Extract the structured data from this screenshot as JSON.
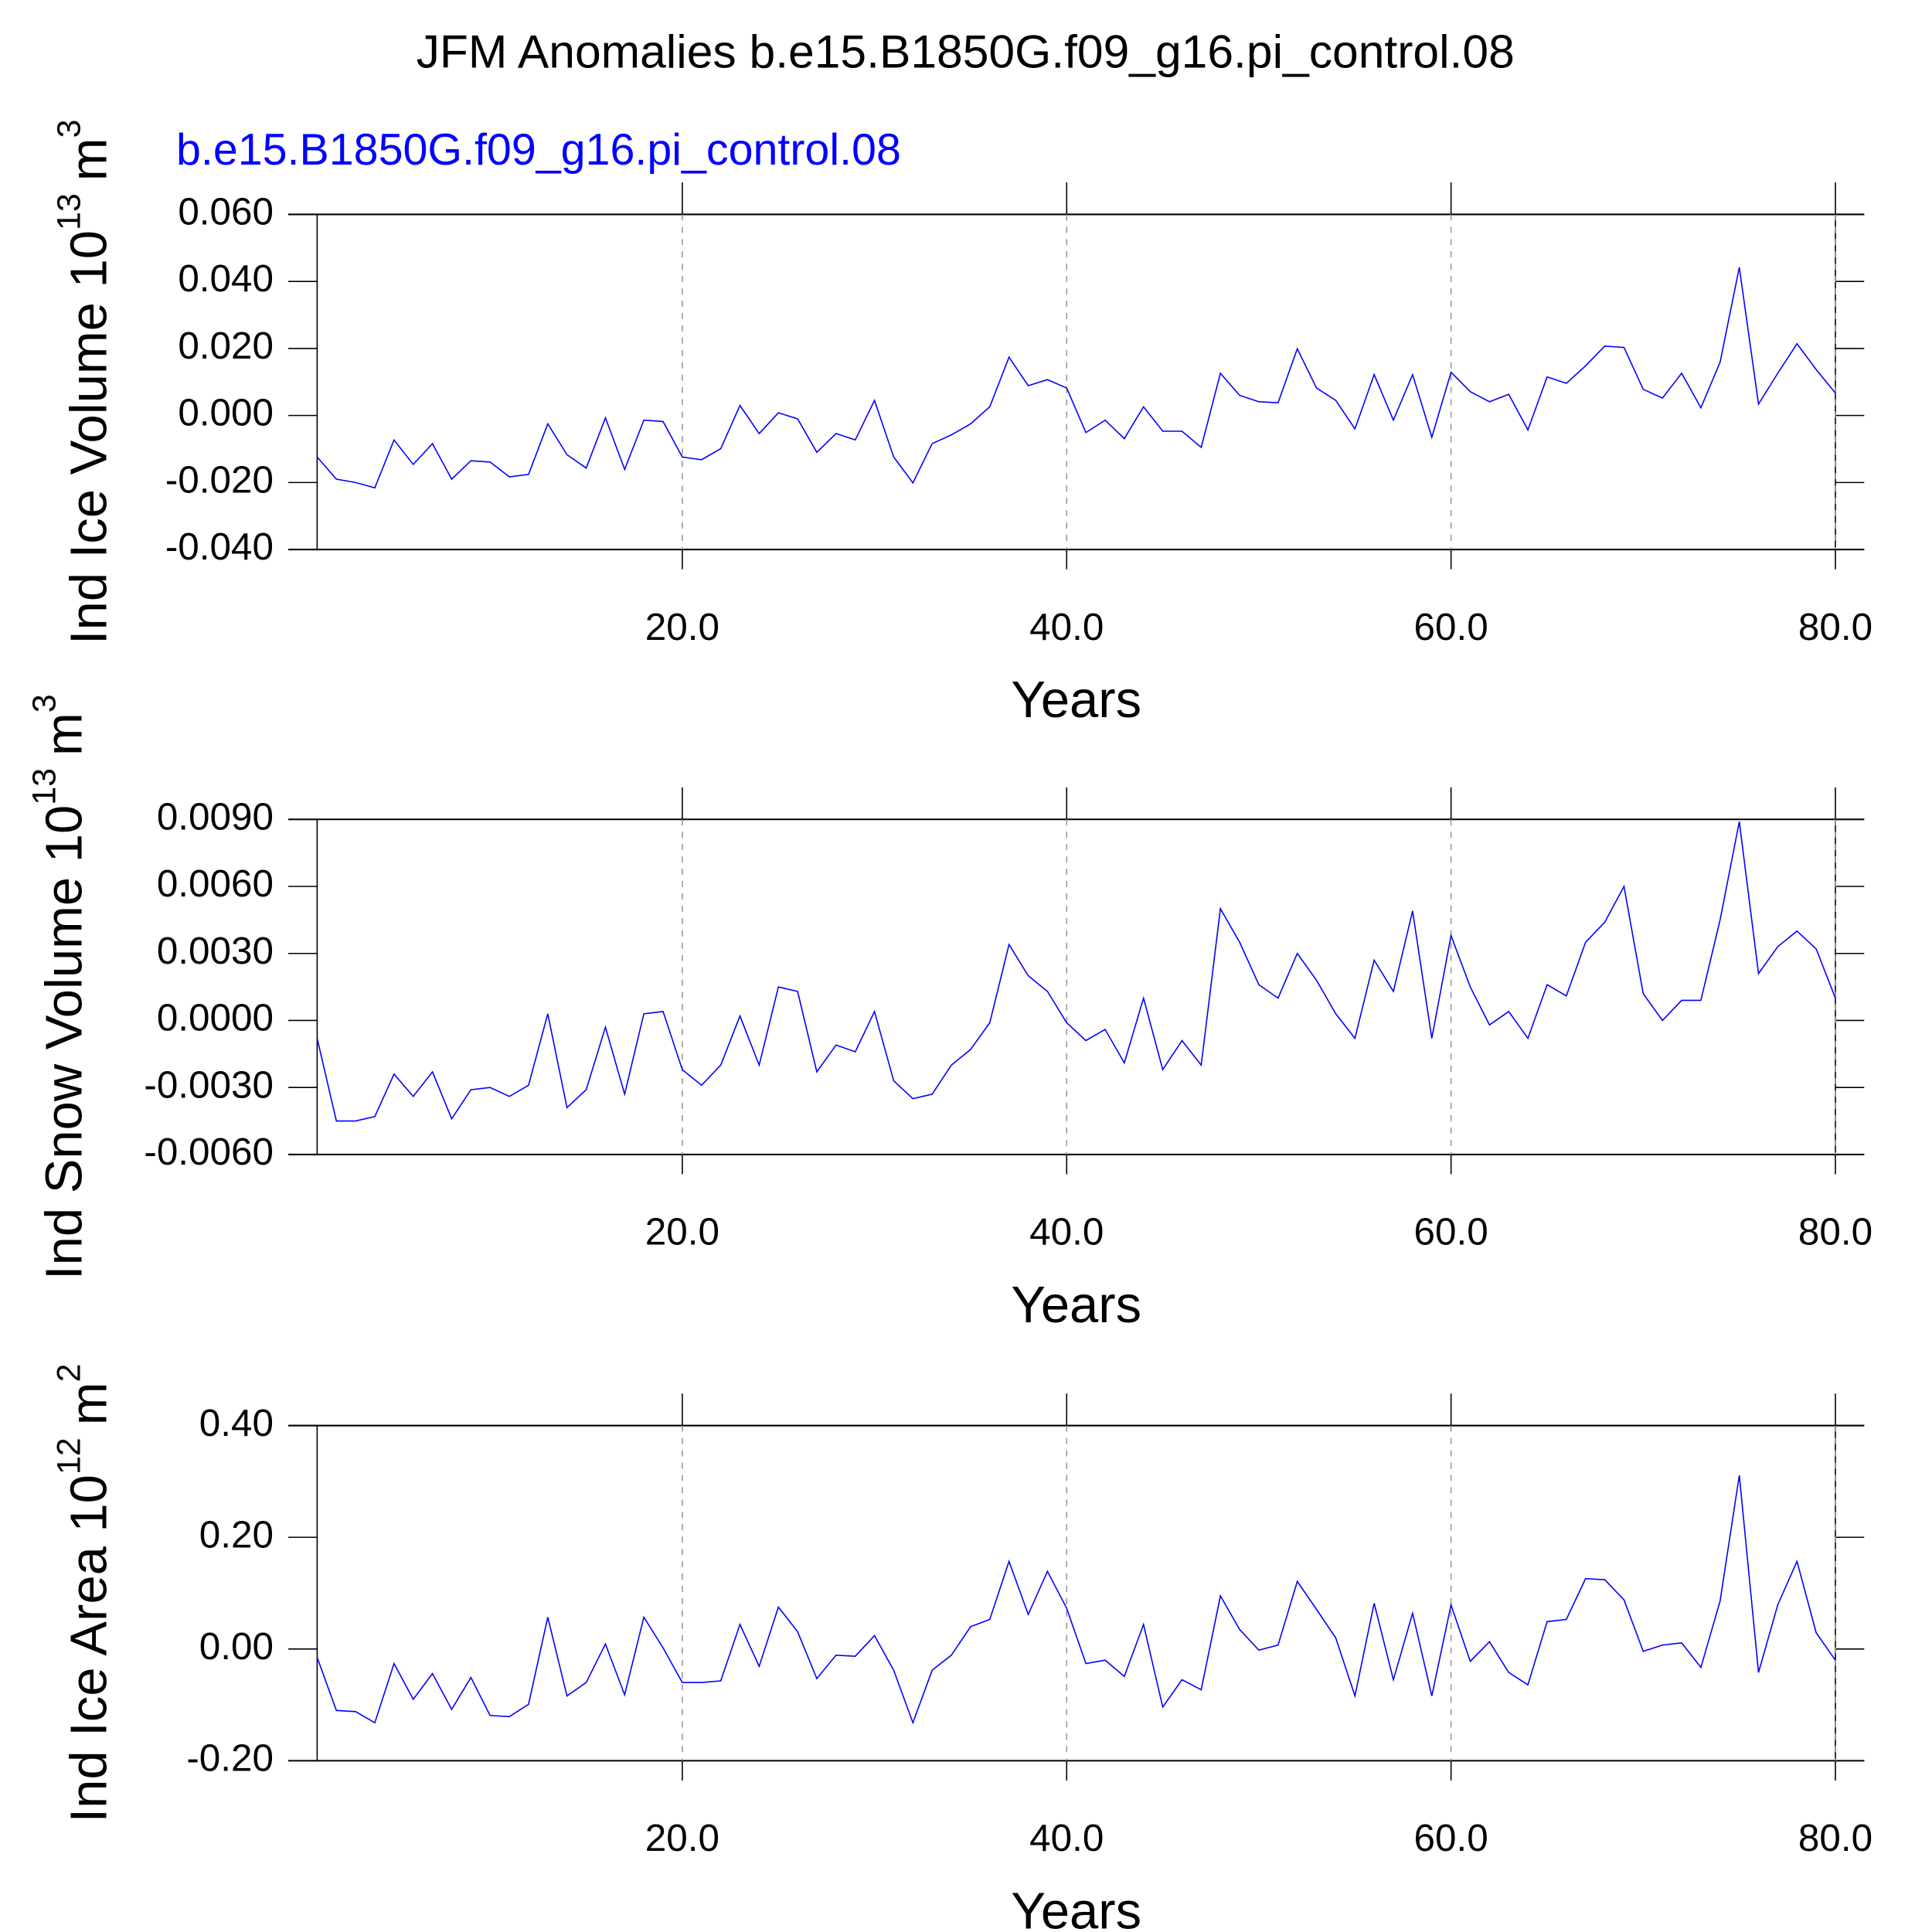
{
  "chart_data": [
    {
      "type": "line",
      "title": "JFM Anomalies b.e15.B1850G.f09_g16.pi_control.08",
      "subtitle": "b.e15.B1850G.f09_g16.pi_control.08",
      "subtitle_color": "#0000ff",
      "ylabel": "Ind Ice Volume 10",
      "ylabel_exponent": "13",
      "ylabel_unit": "m",
      "ylabel_unit_exponent": "3",
      "xlabel": "Years",
      "color": "#0000ff",
      "xlim": [
        -0.5,
        81.5
      ],
      "xticks": [
        {
          "value": 20,
          "label": "20.0"
        },
        {
          "value": 40,
          "label": "40.0"
        },
        {
          "value": 60,
          "label": "60.0"
        },
        {
          "value": 80,
          "label": "80.0"
        }
      ],
      "ylim": [
        -0.04,
        0.06
      ],
      "yticks": [
        {
          "value": 0.06,
          "label": "0.060"
        },
        {
          "value": 0.04,
          "label": "0.040"
        },
        {
          "value": 0.02,
          "label": "0.020"
        },
        {
          "value": 0,
          "label": "0.000"
        },
        {
          "value": -0.02,
          "label": "-0.020"
        },
        {
          "value": -0.04,
          "label": "-0.040"
        }
      ],
      "x": [
        1,
        2,
        3,
        4,
        5,
        6,
        7,
        8,
        9,
        10,
        11,
        12,
        13,
        14,
        15,
        16,
        17,
        18,
        19,
        20,
        21,
        22,
        23,
        24,
        25,
        26,
        27,
        28,
        29,
        30,
        31,
        32,
        33,
        34,
        35,
        36,
        37,
        38,
        39,
        40,
        41,
        42,
        43,
        44,
        45,
        46,
        47,
        48,
        49,
        50,
        51,
        52,
        53,
        54,
        55,
        56,
        57,
        58,
        59,
        60,
        61,
        62,
        63,
        64,
        65,
        66,
        67,
        68,
        69,
        70,
        71,
        72,
        73,
        74,
        75,
        76,
        77,
        78,
        79,
        80
      ],
      "values": [
        -0.0124,
        -0.019,
        -0.02,
        -0.0216,
        -0.0073,
        -0.0146,
        -0.0084,
        -0.019,
        -0.0135,
        -0.0139,
        -0.0183,
        -0.0176,
        -0.0025,
        -0.0117,
        -0.0157,
        -0.0007,
        -0.0161,
        -0.0014,
        -0.0018,
        -0.0124,
        -0.0132,
        -0.0099,
        0.003,
        -0.0054,
        0.0008,
        -0.001,
        -0.011,
        -0.0054,
        -0.0073,
        0.0045,
        -0.0124,
        -0.0201,
        -0.0084,
        -0.0058,
        -0.0025,
        0.0026,
        0.0174,
        0.0089,
        0.0107,
        0.0082,
        -0.0051,
        -0.0014,
        -0.0069,
        0.0026,
        -0.0047,
        -0.0047,
        -0.0095,
        0.0126,
        0.006,
        0.0041,
        0.0038,
        0.0199,
        0.0082,
        0.0045,
        -0.004,
        0.0122,
        -0.0014,
        0.0122,
        -0.0065,
        0.0129,
        0.0071,
        0.0041,
        0.0063,
        -0.0043,
        0.0115,
        0.0096,
        0.0148,
        0.0207,
        0.0203,
        0.0078,
        0.0052,
        0.0126,
        0.0023,
        0.0159,
        0.0442,
        0.0034,
        0.0126,
        0.0214,
        0.0137,
        0.0067
      ]
    },
    {
      "type": "line",
      "ylabel": "Ind Snow Volume 10",
      "ylabel_exponent": "13",
      "ylabel_unit": "m",
      "ylabel_unit_exponent": "3",
      "xlabel": "Years",
      "color": "#0000ff",
      "xlim": [
        -0.5,
        81.5
      ],
      "xticks": [
        {
          "value": 20,
          "label": "20.0"
        },
        {
          "value": 40,
          "label": "40.0"
        },
        {
          "value": 60,
          "label": "60.0"
        },
        {
          "value": 80,
          "label": "80.0"
        }
      ],
      "ylim": [
        -0.006,
        0.009
      ],
      "yticks": [
        {
          "value": 0.009,
          "label": "0.0090"
        },
        {
          "value": 0.006,
          "label": "0.0060"
        },
        {
          "value": 0.003,
          "label": "0.0030"
        },
        {
          "value": 0,
          "label": "0.0000"
        },
        {
          "value": -0.003,
          "label": "-0.0030"
        },
        {
          "value": -0.006,
          "label": "-0.0060"
        }
      ],
      "x": [
        1,
        2,
        3,
        4,
        5,
        6,
        7,
        8,
        9,
        10,
        11,
        12,
        13,
        14,
        15,
        16,
        17,
        18,
        19,
        20,
        21,
        22,
        23,
        24,
        25,
        26,
        27,
        28,
        29,
        30,
        31,
        32,
        33,
        34,
        35,
        36,
        37,
        38,
        39,
        40,
        41,
        42,
        43,
        44,
        45,
        46,
        47,
        48,
        49,
        50,
        51,
        52,
        53,
        54,
        55,
        56,
        57,
        58,
        59,
        60,
        61,
        62,
        63,
        64,
        65,
        66,
        67,
        68,
        69,
        70,
        71,
        72,
        73,
        74,
        75,
        76,
        77,
        78,
        79,
        80
      ],
      "values": [
        -0.0008,
        -0.0045,
        -0.0045,
        -0.0043,
        -0.0024,
        -0.0034,
        -0.0023,
        -0.0044,
        -0.0031,
        -0.003,
        -0.0034,
        -0.0029,
        0.0003,
        -0.0039,
        -0.0031,
        -0.0003,
        -0.0033,
        0.0003,
        0.0004,
        -0.0022,
        -0.0029,
        -0.002,
        0.0002,
        -0.002,
        0.0015,
        0.0013,
        -0.0023,
        -0.0011,
        -0.0014,
        0.0004,
        -0.0027,
        -0.0035,
        -0.0033,
        -0.002,
        -0.0013,
        -0.0001,
        0.0034,
        0.002,
        0.0013,
        -0.0001,
        -0.0009,
        -0.0004,
        -0.0019,
        0.001,
        -0.0022,
        -0.0009,
        -0.002,
        0.005,
        0.0035,
        0.0016,
        0.001,
        0.003,
        0.0018,
        0.0003,
        -0.0008,
        0.0027,
        0.0013,
        0.0049,
        -0.0008,
        0.0038,
        0.0015,
        -0.0002,
        0.0004,
        -0.0008,
        0.0016,
        0.0011,
        0.0035,
        0.0044,
        0.006,
        0.0012,
        0,
        0.0009,
        0.0009,
        0.0045,
        0.0089,
        0.0021,
        0.0033,
        0.004,
        0.0032,
        0.001
      ]
    },
    {
      "type": "line",
      "ylabel": "Ind Ice Area 10",
      "ylabel_exponent": "12",
      "ylabel_unit": "m",
      "ylabel_unit_exponent": "2",
      "xlabel": "Years",
      "color": "#0000ff",
      "xlim": [
        -0.5,
        81.5
      ],
      "xticks": [
        {
          "value": 20,
          "label": "20.0"
        },
        {
          "value": 40,
          "label": "40.0"
        },
        {
          "value": 60,
          "label": "60.0"
        },
        {
          "value": 80,
          "label": "80.0"
        }
      ],
      "ylim": [
        -0.2,
        0.4
      ],
      "yticks": [
        {
          "value": 0.4,
          "label": "0.40"
        },
        {
          "value": 0.2,
          "label": "0.20"
        },
        {
          "value": 0,
          "label": "0.00"
        },
        {
          "value": -0.2,
          "label": "-0.20"
        }
      ],
      "x": [
        1,
        2,
        3,
        4,
        5,
        6,
        7,
        8,
        9,
        10,
        11,
        12,
        13,
        14,
        15,
        16,
        17,
        18,
        19,
        20,
        21,
        22,
        23,
        24,
        25,
        26,
        27,
        28,
        29,
        30,
        31,
        32,
        33,
        34,
        35,
        36,
        37,
        38,
        39,
        40,
        41,
        42,
        43,
        44,
        45,
        46,
        47,
        48,
        49,
        50,
        51,
        52,
        53,
        54,
        55,
        56,
        57,
        58,
        59,
        60,
        61,
        62,
        63,
        64,
        65,
        66,
        67,
        68,
        69,
        70,
        71,
        72,
        73,
        74,
        75,
        76,
        77,
        78,
        79,
        80
      ],
      "values": [
        -0.015,
        -0.11,
        -0.112,
        -0.132,
        -0.026,
        -0.09,
        -0.044,
        -0.108,
        -0.051,
        -0.119,
        -0.121,
        -0.099,
        0.057,
        -0.084,
        -0.06,
        0.009,
        -0.082,
        0.057,
        0.002,
        -0.06,
        -0.06,
        -0.057,
        0.044,
        -0.031,
        0.075,
        0.031,
        -0.053,
        -0.011,
        -0.013,
        0.024,
        -0.038,
        -0.132,
        -0.038,
        -0.011,
        0.04,
        0.053,
        0.157,
        0.062,
        0.139,
        0.073,
        -0.026,
        -0.02,
        -0.049,
        0.044,
        -0.104,
        -0.055,
        -0.073,
        0.095,
        0.035,
        -0.002,
        0.007,
        0.121,
        0.071,
        0.02,
        -0.084,
        0.082,
        -0.055,
        0.064,
        -0.084,
        0.079,
        -0.022,
        0.013,
        -0.042,
        -0.064,
        0.049,
        0.053,
        0.126,
        0.124,
        0.088,
        -0.004,
        0.007,
        0.011,
        -0.033,
        0.086,
        0.311,
        -0.042,
        0.079,
        0.157,
        0.029,
        -0.02
      ]
    }
  ]
}
